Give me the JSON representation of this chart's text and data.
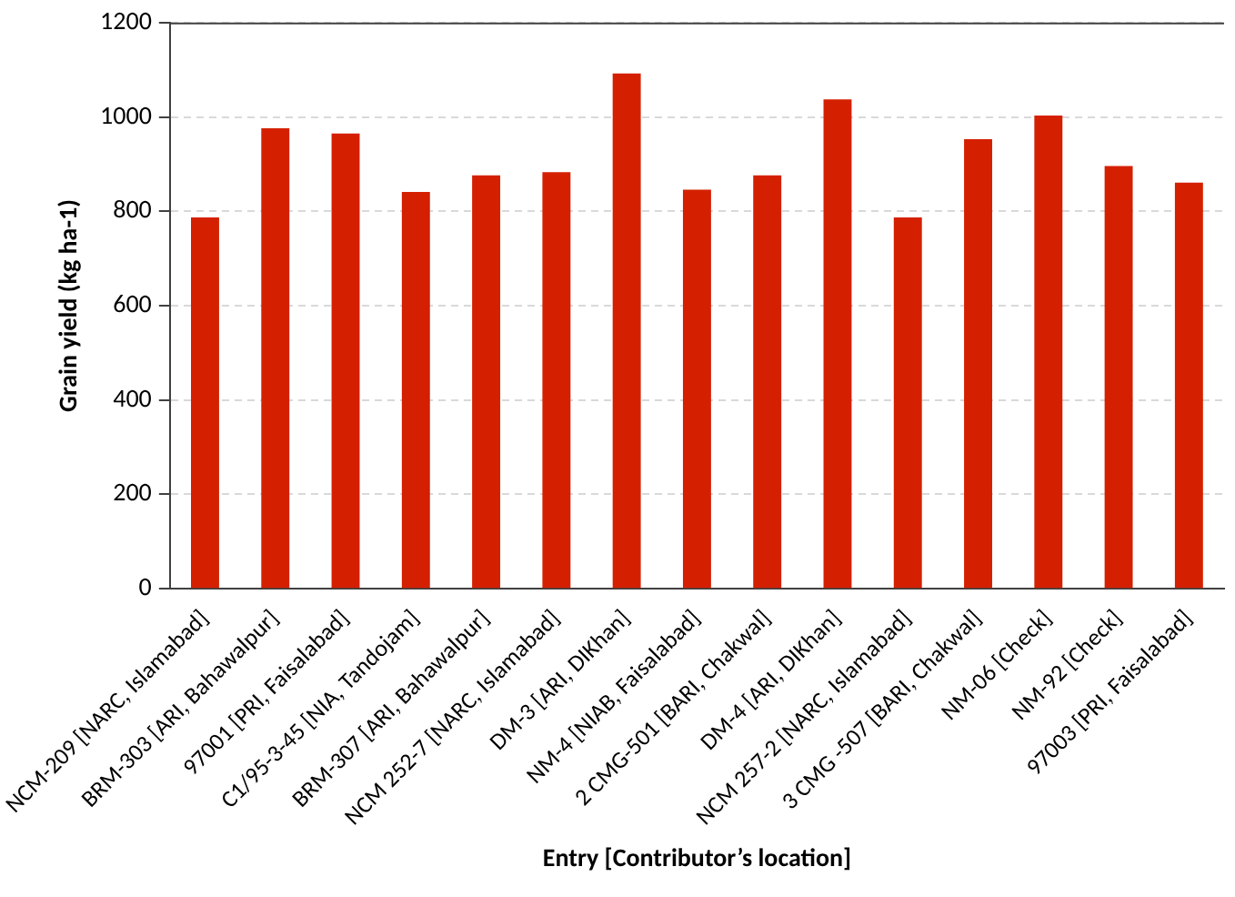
{
  "chart_data": {
    "type": "bar",
    "xlabel": "Entry [Contributor’s location]",
    "ylabel": "Grain yield (kg ha-1)",
    "categories": [
      "NCM-209 [NARC, Islamabad]",
      "BRM-303 [ARI, Bahawalpur]",
      "97001 [PRI, Faisalabad]",
      "C1/95-3-45 [NIA, Tandojam]",
      "BRM-307 [ARI, Bahawalpur]",
      "NCM 252-7 [NARC, Islamabad]",
      "DM-3 [ARI, DIKhan]",
      "NM-4 [NIAB, Faisalabad]",
      "2 CMG-501 [BARI, Chakwal]",
      "DM-4 [ARI, DIKhan]",
      "NCM 257-2 [NARC, Islamabad]",
      "3 CMG -507 [BARI, Chakwal]",
      "NM-06 [Check]",
      "NM-92 [Check]",
      "97003 [PRI, Faisalabad]"
    ],
    "values": [
      787,
      976,
      965,
      841,
      876,
      883,
      1092,
      846,
      876,
      1037,
      787,
      953,
      1003,
      896,
      861
    ],
    "color": "#d42000",
    "ylim": [
      0,
      1200
    ],
    "yticks": [
      0,
      200,
      400,
      600,
      800,
      1000,
      1200
    ],
    "grid": "y",
    "legend": false
  }
}
